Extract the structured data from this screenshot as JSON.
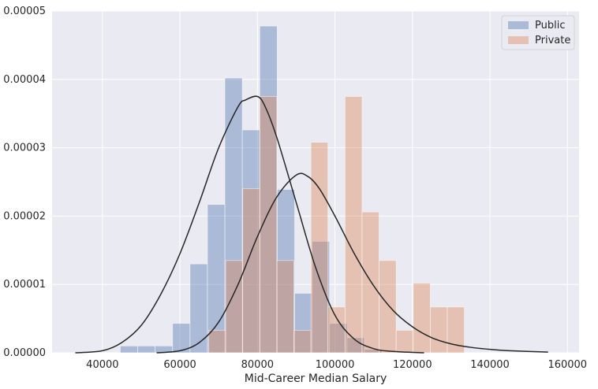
{
  "chart_data": {
    "type": "histogram",
    "xlabel": "Mid-Career Median Salary",
    "ylabel": "",
    "xlim": [
      27000,
      163000
    ],
    "ylim": [
      0,
      5e-05
    ],
    "grid": true,
    "legend_placement": "top-right",
    "x_ticks": [
      40000,
      60000,
      80000,
      100000,
      120000,
      140000,
      160000
    ],
    "x_tick_labels": [
      "40000",
      "60000",
      "80000",
      "100000",
      "120000",
      "140000",
      "160000"
    ],
    "y_ticks": [
      0,
      1e-05,
      2e-05,
      3e-05,
      4e-05,
      5e-05
    ],
    "y_tick_labels": [
      "0.00000",
      "0.00001",
      "0.00002",
      "0.00003",
      "0.00004",
      "0.00005"
    ],
    "series": [
      {
        "name": "Public",
        "color": "#4c72b0",
        "opacity": 0.4,
        "bin_edges": [
          44600,
          49100,
          53600,
          58100,
          62600,
          67100,
          71600,
          76100,
          80600,
          85100,
          89600,
          94100,
          98600,
          103100,
          107600,
          112100
        ],
        "density": [
          1e-06,
          1e-06,
          1e-06,
          4.3e-06,
          1.3e-05,
          2.17e-05,
          4.02e-05,
          3.26e-05,
          4.78e-05,
          2.39e-05,
          8.7e-06,
          1.63e-05,
          4.3e-06,
          2.2e-06,
          5e-07
        ],
        "kde": [
          [
            33000,
            0
          ],
          [
            40000,
            3e-07
          ],
          [
            45000,
            1.5e-06
          ],
          [
            50000,
            4e-06
          ],
          [
            55000,
            8.5e-06
          ],
          [
            60000,
            1.45e-05
          ],
          [
            65000,
            2.2e-05
          ],
          [
            70000,
            3e-05
          ],
          [
            75000,
            3.6e-05
          ],
          [
            77000,
            3.7e-05
          ],
          [
            80000,
            3.75e-05
          ],
          [
            82000,
            3.6e-05
          ],
          [
            85000,
            3.15e-05
          ],
          [
            90000,
            2.2e-05
          ],
          [
            95000,
            1.25e-05
          ],
          [
            100000,
            5.5e-06
          ],
          [
            105000,
            2e-06
          ],
          [
            110000,
            6e-07
          ],
          [
            115000,
            2e-07
          ],
          [
            123000,
            0
          ]
        ]
      },
      {
        "name": "Private",
        "color": "#dd8452",
        "opacity": 0.4,
        "bin_edges": [
          67400,
          71800,
          76200,
          80600,
          85000,
          89400,
          93800,
          98200,
          102600,
          107000,
          111400,
          115800,
          120200,
          124600,
          129000,
          133400
        ],
        "density": [
          3.3e-06,
          1.35e-05,
          2.4e-05,
          3.75e-05,
          1.35e-05,
          3.3e-06,
          3.08e-05,
          6.7e-06,
          3.75e-05,
          2.06e-05,
          1.35e-05,
          3.3e-06,
          1.02e-05,
          6.7e-06,
          6.7e-06
        ],
        "kde": [
          [
            54000,
            0
          ],
          [
            60000,
            3e-07
          ],
          [
            65000,
            1.5e-06
          ],
          [
            70000,
            4.5e-06
          ],
          [
            75000,
            1e-05
          ],
          [
            80000,
            1.7e-05
          ],
          [
            85000,
            2.28e-05
          ],
          [
            90000,
            2.6e-05
          ],
          [
            93000,
            2.58e-05
          ],
          [
            96000,
            2.4e-05
          ],
          [
            100000,
            2e-05
          ],
          [
            105000,
            1.45e-05
          ],
          [
            110000,
            9.8e-06
          ],
          [
            115000,
            6.2e-06
          ],
          [
            120000,
            3.8e-06
          ],
          [
            125000,
            2.2e-06
          ],
          [
            130000,
            1.3e-06
          ],
          [
            135000,
            8e-07
          ],
          [
            140000,
            5e-07
          ],
          [
            145000,
            3e-07
          ],
          [
            155000,
            1e-07
          ]
        ]
      }
    ]
  }
}
